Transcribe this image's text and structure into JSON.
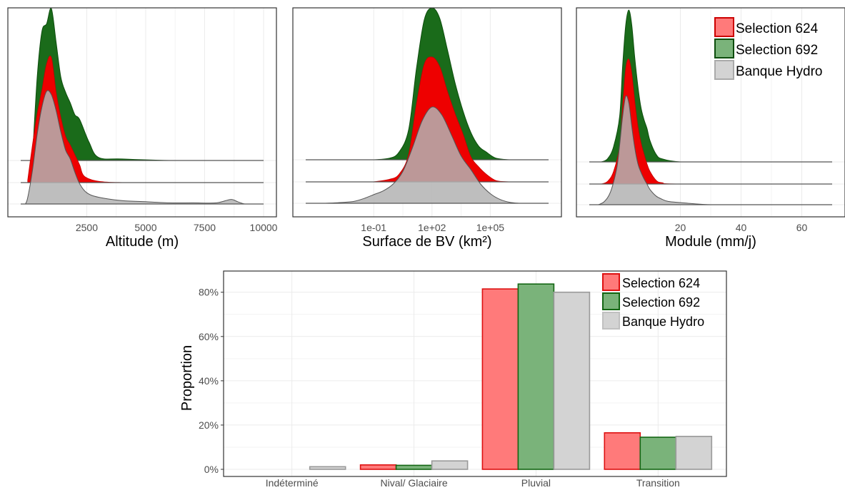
{
  "colors": {
    "sel624_fill": "#ee0000",
    "sel624_stroke": "#cc0000",
    "sel692_fill": "#1a6b1a",
    "sel692_stroke": "#0d4d0d",
    "hydro_fill": "#b3b3b3",
    "hydro_stroke": "#555555",
    "bar624_fill": "#ff7a7a",
    "bar624_stroke": "#dd1111",
    "bar692_fill": "#7ab37a",
    "bar692_stroke": "#136613",
    "barhydro_fill": "#d3d3d3",
    "barhydro_stroke": "#9a9a9a"
  },
  "legend": {
    "entries": [
      "Selection 624",
      "Selection 692",
      "Banque Hydro"
    ]
  },
  "chart_data": [
    {
      "type": "area",
      "subtype": "ridgeline-density",
      "xlabel": "Altitude (m)",
      "ylabel": "",
      "xlim": [
        -300,
        10000
      ],
      "xticks": [
        2500,
        5000,
        7500,
        10000
      ],
      "xtick_labels": [
        "2500",
        "5000",
        "7500",
        "10000"
      ],
      "series": [
        {
          "name": "Selection 692",
          "x": [
            200,
            400,
            600,
            800,
            1000,
            1200,
            1400,
            1600,
            1800,
            2000,
            2200,
            2600,
            3000,
            4000,
            6000,
            8000,
            9500
          ],
          "density": [
            0.02,
            0.55,
            0.85,
            0.9,
            1.0,
            0.78,
            0.55,
            0.45,
            0.38,
            0.3,
            0.27,
            0.12,
            0.02,
            0.01,
            0.0,
            0.0,
            0.0
          ]
        },
        {
          "name": "Selection 624",
          "x": [
            0,
            200,
            400,
            600,
            800,
            1000,
            1200,
            1400,
            1600,
            1800,
            2000,
            2200,
            2400,
            3000,
            4000,
            6000,
            8000,
            9500
          ],
          "density": [
            0.02,
            0.3,
            0.55,
            0.74,
            0.95,
            1.0,
            0.72,
            0.52,
            0.37,
            0.3,
            0.22,
            0.14,
            0.05,
            0.01,
            0.0,
            0.0,
            0.0,
            0.0
          ]
        },
        {
          "name": "Banque Hydro",
          "x": [
            -100,
            0,
            200,
            400,
            600,
            800,
            1000,
            1200,
            1400,
            1600,
            1800,
            2000,
            2200,
            2500,
            3000,
            4000,
            5000,
            6000,
            7000,
            8000,
            8600,
            8900,
            9200,
            9500
          ],
          "density": [
            0.0,
            0.06,
            0.3,
            0.62,
            0.86,
            1.0,
            0.97,
            0.83,
            0.64,
            0.48,
            0.4,
            0.28,
            0.18,
            0.1,
            0.06,
            0.03,
            0.02,
            0.01,
            0.01,
            0.01,
            0.04,
            0.02,
            0.0,
            0.0
          ]
        }
      ]
    },
    {
      "type": "area",
      "subtype": "ridgeline-density",
      "xlabel": "Surface de BV (km²)",
      "ylabel": "",
      "xscale": "log10",
      "xlim_log10": [
        -4.5,
        8
      ],
      "xticks": [
        0.1,
        100,
        100000
      ],
      "xtick_labels": [
        "1e-01",
        "1e+02",
        "1e+05"
      ],
      "series": [
        {
          "name": "Selection 692",
          "log10_x": [
            -1,
            -0.2,
            0.3,
            0.8,
            1.2,
            1.6,
            2.0,
            2.4,
            2.8,
            3.2,
            3.6,
            4.0,
            4.4,
            4.8,
            5.3,
            6.0
          ],
          "density": [
            0.0,
            0.01,
            0.05,
            0.2,
            0.6,
            0.92,
            1.0,
            0.93,
            0.72,
            0.5,
            0.32,
            0.18,
            0.09,
            0.05,
            0.01,
            0.0
          ]
        },
        {
          "name": "Selection 624",
          "log10_x": [
            -1,
            -0.2,
            0.3,
            0.8,
            1.2,
            1.6,
            2.0,
            2.4,
            2.8,
            3.2,
            3.6,
            4.0,
            4.4,
            4.8,
            5.3,
            6.0
          ],
          "density": [
            0.0,
            0.02,
            0.06,
            0.22,
            0.62,
            0.94,
            1.0,
            0.92,
            0.72,
            0.54,
            0.38,
            0.2,
            0.12,
            0.06,
            0.01,
            0.0
          ]
        },
        {
          "name": "Banque Hydro",
          "log10_x": [
            -3.5,
            -2.5,
            -2.0,
            -1.5,
            -1.0,
            -0.5,
            0.0,
            0.5,
            1.0,
            1.5,
            2.0,
            2.5,
            3.0,
            3.5,
            4.0,
            4.5,
            5.0,
            5.5,
            6.0,
            6.5
          ],
          "density": [
            0.0,
            0.01,
            0.02,
            0.05,
            0.09,
            0.13,
            0.2,
            0.33,
            0.58,
            0.86,
            1.0,
            0.92,
            0.71,
            0.49,
            0.35,
            0.2,
            0.1,
            0.04,
            0.01,
            0.0
          ]
        }
      ]
    },
    {
      "type": "area",
      "subtype": "ridgeline-density",
      "xlabel": "Module (mm/j)",
      "ylabel": "",
      "xlim": [
        -10,
        70
      ],
      "xticks": [
        20,
        40,
        60
      ],
      "xtick_labels": [
        "20",
        "40",
        "60"
      ],
      "series": [
        {
          "name": "Selection 692",
          "x": [
            -6,
            -4,
            -2,
            0,
            1,
            2,
            3,
            4,
            5,
            6,
            7,
            8,
            9,
            10,
            12,
            14,
            20,
            30,
            60
          ],
          "density": [
            0.0,
            0.02,
            0.1,
            0.3,
            0.64,
            0.9,
            1.0,
            0.9,
            0.68,
            0.5,
            0.36,
            0.28,
            0.22,
            0.14,
            0.05,
            0.02,
            0.0,
            0.0,
            0.0
          ]
        },
        {
          "name": "Selection 624",
          "x": [
            -6,
            -4,
            -2,
            0,
            1,
            2,
            3,
            4,
            5,
            6,
            7,
            8,
            9,
            10,
            12,
            14,
            20,
            60
          ],
          "density": [
            0.0,
            0.02,
            0.1,
            0.3,
            0.62,
            0.92,
            1.0,
            0.88,
            0.65,
            0.46,
            0.33,
            0.24,
            0.16,
            0.1,
            0.03,
            0.01,
            0.0,
            0.0
          ]
        },
        {
          "name": "Banque Hydro",
          "x": [
            -7,
            -5,
            -3,
            -1,
            0,
            1,
            2,
            3,
            4,
            5,
            6,
            7,
            8,
            9,
            10,
            12,
            14,
            16,
            20,
            24,
            30,
            40,
            60
          ],
          "density": [
            0.0,
            0.03,
            0.12,
            0.33,
            0.55,
            0.82,
            1.0,
            0.94,
            0.72,
            0.52,
            0.38,
            0.3,
            0.24,
            0.19,
            0.14,
            0.08,
            0.05,
            0.03,
            0.02,
            0.01,
            0.0,
            0.0,
            0.0
          ]
        }
      ]
    },
    {
      "type": "bar",
      "subtype": "grouped",
      "xlabel": "",
      "ylabel": "Proportion",
      "ylim": [
        0,
        0.87
      ],
      "yticks": [
        0,
        0.2,
        0.4,
        0.6,
        0.8
      ],
      "ytick_labels": [
        "0%",
        "20%",
        "40%",
        "60%",
        "80%"
      ],
      "categories": [
        "Indéterminé",
        "Nival/ Glaciaire",
        "Pluvial",
        "Transition"
      ],
      "series": [
        {
          "name": "Selection 624",
          "values": [
            0.0,
            0.02,
            0.815,
            0.165
          ]
        },
        {
          "name": "Selection 692",
          "values": [
            0.0,
            0.018,
            0.837,
            0.145
          ]
        },
        {
          "name": "Banque Hydro",
          "values": [
            0.012,
            0.038,
            0.8,
            0.149
          ]
        }
      ]
    }
  ]
}
